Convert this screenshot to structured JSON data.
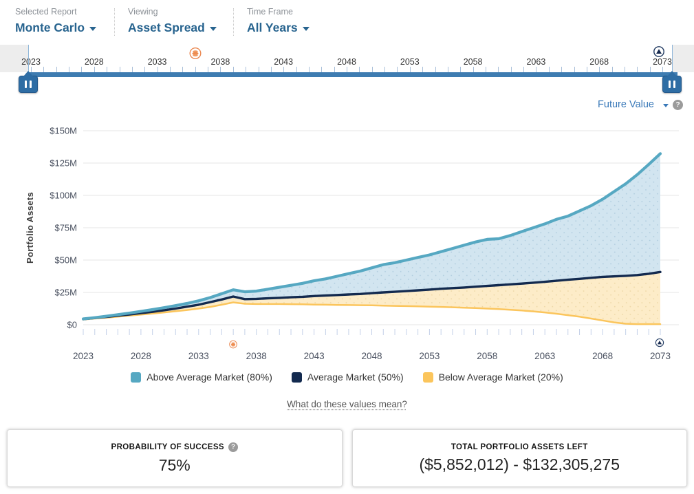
{
  "header": {
    "selected_report": {
      "label": "Selected Report",
      "value": "Monte Carlo"
    },
    "viewing": {
      "label": "Viewing",
      "value": "Asset Spread"
    },
    "time_frame": {
      "label": "Time Frame",
      "value": "All Years"
    }
  },
  "timeline": {
    "start_year": 2023,
    "end_year": 2073,
    "label_step": 5
  },
  "markers": [
    {
      "name": "retirement",
      "year": 2036,
      "color": "#ED8A4E"
    },
    {
      "name": "end-of-plan",
      "year": 2073,
      "color": "#233C63"
    }
  ],
  "chart": {
    "value_type_label": "Future Value",
    "ylabel": "Portfolio Assets"
  },
  "chart_data": {
    "type": "area",
    "units": "USD millions",
    "x": [
      2023,
      2024,
      2025,
      2026,
      2027,
      2028,
      2029,
      2030,
      2031,
      2032,
      2033,
      2034,
      2035,
      2036,
      2037,
      2038,
      2039,
      2040,
      2041,
      2042,
      2043,
      2044,
      2045,
      2046,
      2047,
      2048,
      2049,
      2050,
      2051,
      2052,
      2053,
      2054,
      2055,
      2056,
      2057,
      2058,
      2059,
      2060,
      2061,
      2062,
      2063,
      2064,
      2065,
      2066,
      2067,
      2068,
      2069,
      2070,
      2071,
      2072,
      2073
    ],
    "xticks": [
      2023,
      2028,
      2033,
      2038,
      2043,
      2048,
      2053,
      2058,
      2063,
      2068,
      2073
    ],
    "ylim": [
      0,
      150
    ],
    "ytick_labels": [
      "$0",
      "$25M",
      "$50M",
      "$75M",
      "$100M",
      "$125M",
      "$150M"
    ],
    "ylabel": "Portfolio Assets",
    "grid": true,
    "legend_position": "bottom",
    "series": [
      {
        "name": "Above Average Market (80%)",
        "color": "#56A8C2",
        "fill": "#D2E5F0",
        "values": [
          4.5,
          5.5,
          6.6,
          7.8,
          9.0,
          10.3,
          11.7,
          13.2,
          14.8,
          16.5,
          18.5,
          21.0,
          24.0,
          27.0,
          25.5,
          26.0,
          27.5,
          29.0,
          30.5,
          32.0,
          34.0,
          35.5,
          37.5,
          39.5,
          41.5,
          44.0,
          46.5,
          48.0,
          50.0,
          52.0,
          54.0,
          56.5,
          59.0,
          61.5,
          64.0,
          66.0,
          66.5,
          69.0,
          72.0,
          75.0,
          78.0,
          81.5,
          84.0,
          88.0,
          92.0,
          97.0,
          103.0,
          109.0,
          116.0,
          124.0,
          132.3
        ]
      },
      {
        "name": "Average Market (50%)",
        "color": "#132A4F",
        "fill": null,
        "values": [
          4.3,
          5.2,
          6.1,
          7.0,
          8.0,
          9.0,
          10.0,
          11.2,
          12.5,
          14.0,
          15.5,
          17.5,
          19.5,
          21.8,
          19.8,
          20.0,
          20.4,
          20.8,
          21.2,
          21.6,
          22.2,
          22.6,
          23.0,
          23.4,
          23.8,
          24.4,
          25.0,
          25.5,
          26.0,
          26.6,
          27.2,
          27.8,
          28.3,
          28.8,
          29.4,
          30.0,
          30.6,
          31.2,
          31.8,
          32.5,
          33.2,
          34.0,
          34.8,
          35.5,
          36.3,
          37.0,
          37.4,
          37.8,
          38.4,
          39.4,
          40.8
        ]
      },
      {
        "name": "Below Average Market (20%)",
        "color": "#FBC55C",
        "fill": "#FDECC8",
        "values": [
          4.0,
          4.8,
          5.5,
          6.3,
          7.0,
          7.8,
          8.6,
          9.5,
          10.4,
          11.4,
          12.5,
          13.8,
          15.5,
          17.3,
          16.2,
          16.0,
          16.0,
          16.0,
          15.9,
          15.8,
          15.6,
          15.5,
          15.3,
          15.2,
          15.1,
          15.0,
          14.8,
          14.6,
          14.4,
          14.2,
          14.0,
          13.8,
          13.5,
          13.2,
          12.9,
          12.5,
          12.1,
          11.6,
          11.0,
          10.3,
          9.5,
          8.5,
          7.4,
          6.2,
          4.8,
          3.3,
          1.8,
          0.8,
          0.5,
          0.5,
          0.5
        ]
      }
    ]
  },
  "explainer_link": {
    "text": "What do these values mean?"
  },
  "cards": {
    "probability": {
      "title": "PROBABILITY OF SUCCESS",
      "value": "75%"
    },
    "assets": {
      "title": "TOTAL PORTFOLIO ASSETS LEFT",
      "value": "($5,852,012) - $132,305,275"
    }
  }
}
